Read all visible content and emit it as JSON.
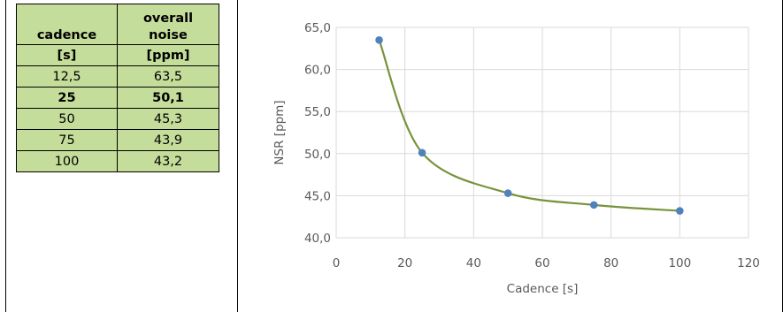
{
  "table": {
    "header": [
      {
        "line1": "",
        "line2": "cadence",
        "unit": "[s]"
      },
      {
        "line1": "overall",
        "line2": "noise",
        "unit": "[ppm]"
      }
    ],
    "rows": [
      {
        "cadence": "12,5",
        "noise": "63,5",
        "bold": false
      },
      {
        "cadence": "25",
        "noise": "50,1",
        "bold": true
      },
      {
        "cadence": "50",
        "noise": "45,3",
        "bold": false
      },
      {
        "cadence": "75",
        "noise": "43,9",
        "bold": false
      },
      {
        "cadence": "100",
        "noise": "43,2",
        "bold": false
      }
    ],
    "fill_color": "#c5dd9a"
  },
  "chart_data": {
    "type": "scatter",
    "xlabel": "Cadence [s]",
    "ylabel": "NSR [ppm]",
    "xlim": [
      0,
      120
    ],
    "ylim": [
      40,
      65
    ],
    "x_ticks": [
      "0",
      "20",
      "40",
      "60",
      "80",
      "100",
      "120"
    ],
    "y_ticks": [
      "40,0",
      "45,0",
      "50,0",
      "55,0",
      "60,0",
      "65,0"
    ],
    "grid": true,
    "smoothed_line": true,
    "series": [
      {
        "x": [
          12.5,
          25,
          50,
          75,
          100
        ],
        "y": [
          63.5,
          50.1,
          45.3,
          43.9,
          43.2
        ],
        "marker_color": "#4f81bd",
        "line_color": "#77933c"
      }
    ]
  }
}
